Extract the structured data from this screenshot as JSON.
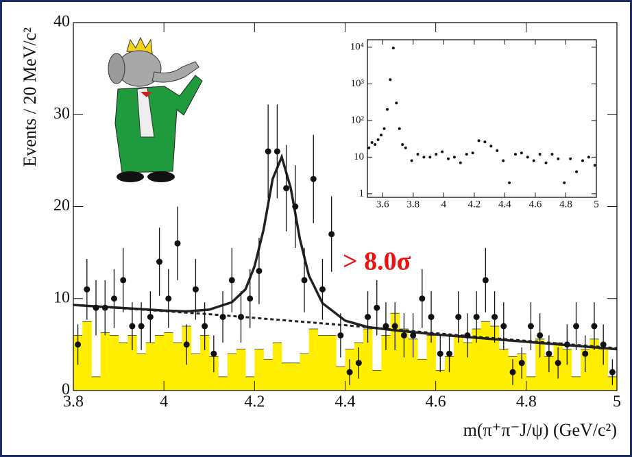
{
  "chart_data": [
    {
      "type": "mixed",
      "xlabel": "m(π⁺π⁻J/ψ) (GeV/c²)",
      "ylabel": "Events / 20 MeV/c²",
      "annotation": "> 8.0σ",
      "xlim": [
        3.8,
        5
      ],
      "ylim": [
        0,
        40
      ],
      "xticks": [
        3.8,
        4,
        4.2,
        4.4,
        4.6,
        4.8,
        5
      ],
      "yticks": [
        0,
        10,
        20,
        30,
        40
      ],
      "series": [
        {
          "type": "histogram",
          "color": "#ffee00",
          "bins": [
            3.8,
            3.82,
            3.84,
            3.86,
            3.88,
            3.9,
            3.92,
            3.94,
            3.96,
            3.98,
            4,
            4.02,
            4.04,
            4.06,
            4.08,
            4.1,
            4.12,
            4.14,
            4.16,
            4.18,
            4.2,
            4.22,
            4.24,
            4.26,
            4.28,
            4.3,
            4.32,
            4.34,
            4.36,
            4.38,
            4.4,
            4.42,
            4.44,
            4.46,
            4.48,
            4.5,
            4.52,
            4.54,
            4.56,
            4.58,
            4.6,
            4.62,
            4.64,
            4.66,
            4.68,
            4.7,
            4.72,
            4.74,
            4.76,
            4.78,
            4.8,
            4.82,
            4.84,
            4.86,
            4.88,
            4.9,
            4.92,
            4.94,
            4.96,
            4.98,
            5
          ],
          "values": [
            6,
            7.5,
            1.5,
            6.3,
            6,
            5.2,
            6,
            4,
            5.2,
            6,
            6.3,
            5.2,
            7,
            4,
            6,
            3.7,
            1.5,
            4,
            4.5,
            1.5,
            4.5,
            3.4,
            5.2,
            3,
            3,
            4,
            6.7,
            6,
            6,
            2.6,
            4.5,
            5.2,
            6.7,
            2.2,
            6,
            8.4,
            6.7,
            5.6,
            3.4,
            6,
            2.2,
            3.7,
            6,
            5.2,
            6.7,
            7.5,
            7,
            4.5,
            3.7,
            4,
            1.5,
            5.6,
            3.7,
            5.2,
            4.5,
            1.5,
            4.5,
            5.6,
            4.5,
            1.5
          ]
        },
        {
          "type": "line",
          "style": "dashed",
          "color": "#222222",
          "x": [
            3.8,
            4.1,
            4.4,
            4.7,
            5
          ],
          "values": [
            9.3,
            8.3,
            7.1,
            5.8,
            4.6
          ]
        },
        {
          "type": "line",
          "style": "solid",
          "color": "#222222",
          "x": [
            3.8,
            3.9,
            4.0,
            4.05,
            4.1,
            4.15,
            4.18,
            4.2,
            4.22,
            4.24,
            4.26,
            4.28,
            4.3,
            4.32,
            4.35,
            4.4,
            4.45,
            4.5,
            4.6,
            4.7,
            4.8,
            4.9,
            5.0
          ],
          "values": [
            9.3,
            9.0,
            8.7,
            8.6,
            8.8,
            9.6,
            11,
            13.5,
            17.5,
            23,
            25.4,
            22,
            16.5,
            12.5,
            9.5,
            7.6,
            6.9,
            6.6,
            6.1,
            5.7,
            5.3,
            4.9,
            4.5
          ]
        },
        {
          "type": "errorbar",
          "color": "#111111",
          "x": [
            3.81,
            3.83,
            3.85,
            3.87,
            3.89,
            3.91,
            3.93,
            3.95,
            3.97,
            3.99,
            4.01,
            4.03,
            4.05,
            4.07,
            4.09,
            4.11,
            4.13,
            4.15,
            4.17,
            4.19,
            4.21,
            4.23,
            4.25,
            4.27,
            4.29,
            4.31,
            4.33,
            4.35,
            4.37,
            4.39,
            4.41,
            4.43,
            4.45,
            4.47,
            4.49,
            4.51,
            4.53,
            4.55,
            4.57,
            4.59,
            4.61,
            4.63,
            4.65,
            4.67,
            4.69,
            4.71,
            4.73,
            4.75,
            4.77,
            4.79,
            4.81,
            4.83,
            4.85,
            4.87,
            4.89,
            4.91,
            4.93,
            4.95,
            4.97,
            4.99
          ],
          "values": [
            5,
            11,
            9,
            9,
            10,
            12,
            7,
            7,
            8,
            14,
            10,
            16,
            5,
            11,
            7,
            4,
            8,
            12,
            8,
            10,
            13,
            26,
            26,
            22,
            20,
            12,
            23,
            11,
            17,
            6,
            2,
            3,
            8,
            9,
            7,
            7,
            6,
            6,
            10,
            8,
            4,
            4,
            8,
            6,
            8,
            12,
            8,
            7,
            2,
            3,
            7,
            6,
            4,
            3,
            5,
            7,
            4,
            7,
            5,
            2
          ],
          "errors": [
            2.2,
            3.3,
            3,
            3,
            3.2,
            3.5,
            2.6,
            2.6,
            2.8,
            3.7,
            3.2,
            4,
            2.2,
            3.3,
            2.6,
            2,
            2.8,
            3.5,
            2.8,
            3.2,
            3.6,
            5.1,
            5.1,
            4.7,
            4.5,
            3.5,
            4.8,
            3.3,
            4.1,
            2.4,
            1.4,
            1.7,
            2.8,
            3,
            2.6,
            2.6,
            2.4,
            2.4,
            3.2,
            2.8,
            2,
            2,
            2.8,
            2.4,
            2.8,
            3.5,
            2.8,
            2.6,
            1.4,
            1.7,
            2.6,
            2.4,
            2,
            1.7,
            2.2,
            2.6,
            2,
            2.6,
            2.2,
            1.4
          ]
        }
      ]
    },
    {
      "type": "scatter",
      "yscale": "log",
      "color": "#111111",
      "xlim": [
        3.5,
        5
      ],
      "ylim": [
        0.8,
        16000
      ],
      "xticks": [
        3.6,
        3.8,
        4,
        4.2,
        4.4,
        4.6,
        4.8,
        5
      ],
      "yticks": [
        1,
        10,
        {
          "value": 100,
          "label": "10²"
        },
        {
          "value": 1000,
          "label": "10³"
        },
        {
          "value": 10000,
          "label": "10⁴"
        }
      ],
      "x": [
        3.51,
        3.53,
        3.55,
        3.57,
        3.59,
        3.61,
        3.63,
        3.65,
        3.67,
        3.69,
        3.71,
        3.73,
        3.75,
        3.79,
        3.83,
        3.87,
        3.91,
        3.95,
        3.99,
        4.03,
        4.07,
        4.11,
        4.15,
        4.19,
        4.23,
        4.27,
        4.31,
        4.35,
        4.39,
        4.43,
        4.47,
        4.51,
        4.55,
        4.59,
        4.63,
        4.67,
        4.71,
        4.75,
        4.79,
        4.83,
        4.87,
        4.91,
        4.95,
        4.99
      ],
      "values": [
        18,
        25,
        22,
        30,
        40,
        60,
        200,
        1300,
        9500,
        300,
        60,
        22,
        18,
        8,
        12,
        10,
        10,
        12,
        14,
        9,
        10,
        7,
        12,
        13,
        28,
        26,
        20,
        15,
        8,
        2,
        12,
        13,
        10,
        8,
        12,
        7,
        12,
        9,
        2,
        9,
        4,
        8,
        10,
        6
      ]
    }
  ]
}
